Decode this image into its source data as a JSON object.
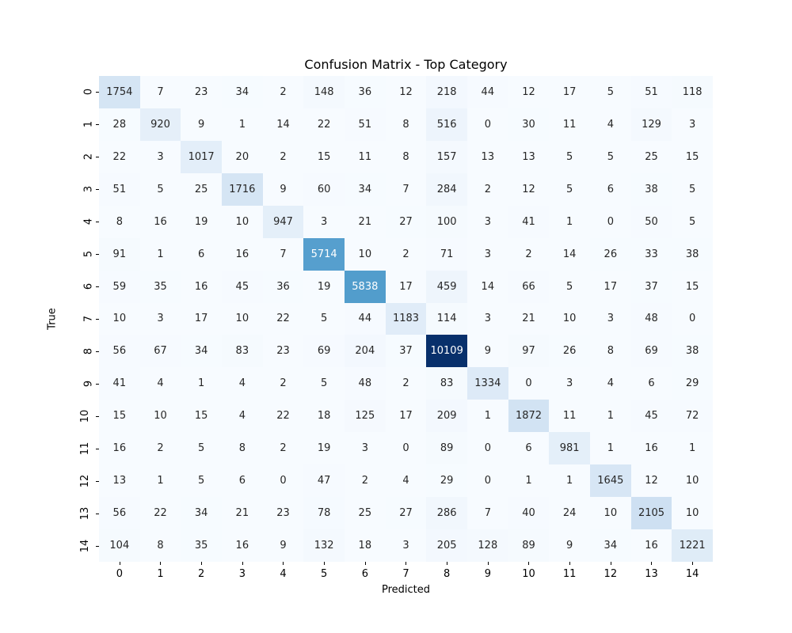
{
  "chart_data": {
    "type": "heatmap",
    "title": "Confusion Matrix - Top Category",
    "xlabel": "Predicted",
    "ylabel": "True",
    "x_tick_labels": [
      "0",
      "1",
      "2",
      "3",
      "4",
      "5",
      "6",
      "7",
      "8",
      "9",
      "10",
      "11",
      "12",
      "13",
      "14"
    ],
    "y_tick_labels": [
      "0",
      "1",
      "2",
      "3",
      "4",
      "5",
      "6",
      "7",
      "8",
      "9",
      "10",
      "11",
      "12",
      "13",
      "14"
    ],
    "matrix": [
      [
        1754,
        7,
        23,
        34,
        2,
        148,
        36,
        12,
        218,
        44,
        12,
        17,
        5,
        51,
        118
      ],
      [
        28,
        920,
        9,
        1,
        14,
        22,
        51,
        8,
        516,
        0,
        30,
        11,
        4,
        129,
        3
      ],
      [
        22,
        3,
        1017,
        20,
        2,
        15,
        11,
        8,
        157,
        13,
        13,
        5,
        5,
        25,
        15
      ],
      [
        51,
        5,
        25,
        1716,
        9,
        60,
        34,
        7,
        284,
        2,
        12,
        5,
        6,
        38,
        5
      ],
      [
        8,
        16,
        19,
        10,
        947,
        3,
        21,
        27,
        100,
        3,
        41,
        1,
        0,
        50,
        5
      ],
      [
        91,
        1,
        6,
        16,
        7,
        5714,
        10,
        2,
        71,
        3,
        2,
        14,
        26,
        33,
        38
      ],
      [
        59,
        35,
        16,
        45,
        36,
        19,
        5838,
        17,
        459,
        14,
        66,
        5,
        17,
        37,
        15
      ],
      [
        10,
        3,
        17,
        10,
        22,
        5,
        44,
        1183,
        114,
        3,
        21,
        10,
        3,
        48,
        0
      ],
      [
        56,
        67,
        34,
        83,
        23,
        69,
        204,
        37,
        10109,
        9,
        97,
        26,
        8,
        69,
        38
      ],
      [
        41,
        4,
        1,
        4,
        2,
        5,
        48,
        2,
        83,
        1334,
        0,
        3,
        4,
        6,
        29
      ],
      [
        15,
        10,
        15,
        4,
        22,
        18,
        125,
        17,
        209,
        1,
        1872,
        11,
        1,
        45,
        72
      ],
      [
        16,
        2,
        5,
        8,
        2,
        19,
        3,
        0,
        89,
        0,
        6,
        981,
        1,
        16,
        1
      ],
      [
        13,
        1,
        5,
        6,
        0,
        47,
        2,
        4,
        29,
        0,
        1,
        1,
        1645,
        12,
        10
      ],
      [
        56,
        22,
        34,
        21,
        23,
        78,
        25,
        27,
        286,
        7,
        40,
        24,
        10,
        2105,
        10
      ],
      [
        104,
        8,
        35,
        16,
        9,
        132,
        18,
        3,
        205,
        128,
        89,
        9,
        34,
        16,
        1221
      ]
    ],
    "vmin": 0,
    "vmax": 10109,
    "colormap": "Blues",
    "colorbar": false,
    "grid": false,
    "legend": "none"
  },
  "colors": {
    "background": "#ffffff",
    "annotation_dark": "#262626",
    "annotation_light": "#ffffff",
    "tick_color": "#000000",
    "colormap_anchors": [
      [
        0.0,
        "#f7fbff"
      ],
      [
        0.125,
        "#deebf7"
      ],
      [
        0.25,
        "#c6dbef"
      ],
      [
        0.375,
        "#9ecae1"
      ],
      [
        0.5,
        "#6baed6"
      ],
      [
        0.625,
        "#4292c6"
      ],
      [
        0.75,
        "#2171b5"
      ],
      [
        0.875,
        "#08519c"
      ],
      [
        1.0,
        "#08306b"
      ]
    ]
  }
}
